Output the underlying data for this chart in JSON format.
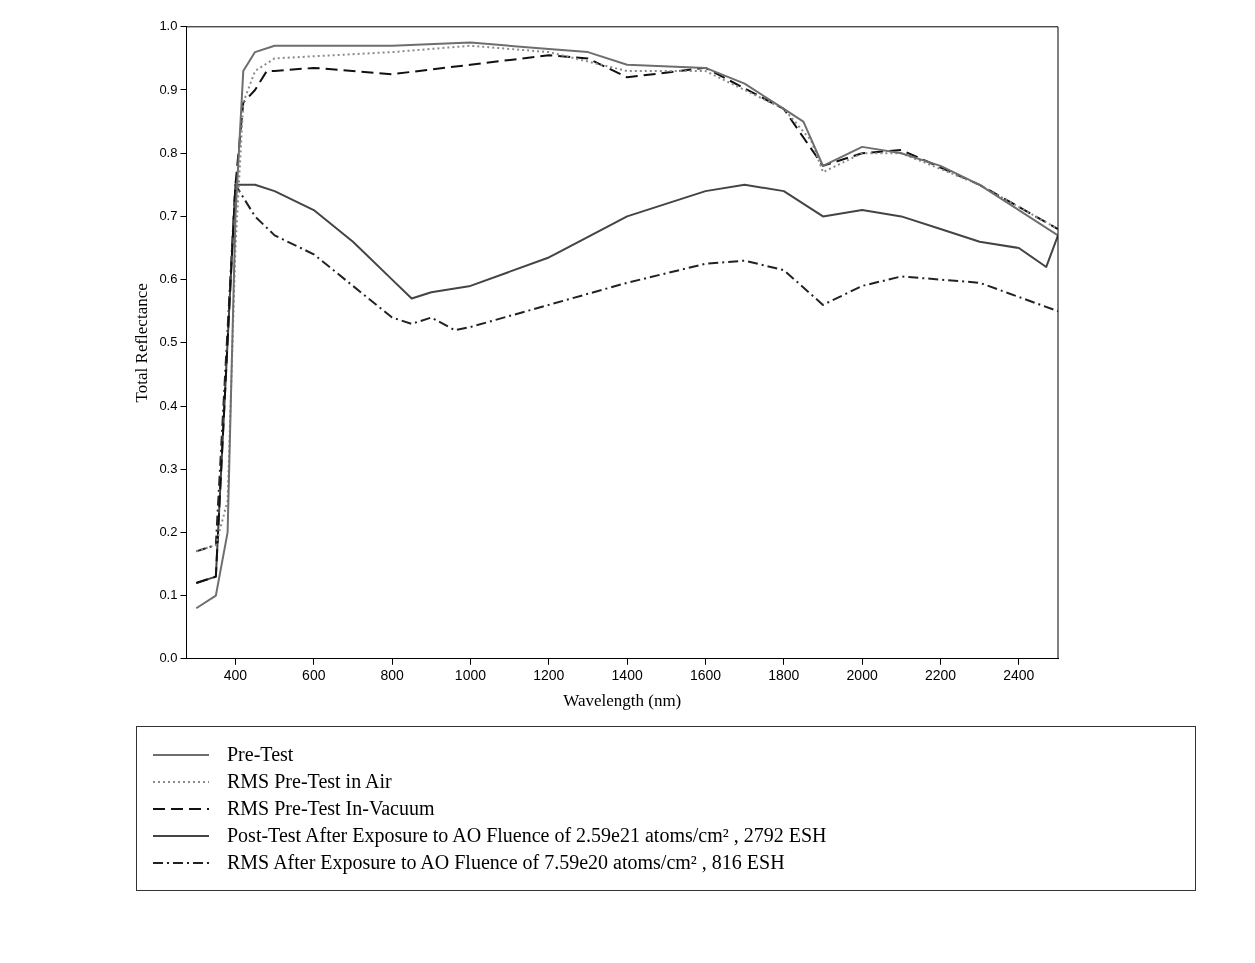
{
  "chart_data": {
    "type": "line",
    "xlabel": "Wavelength (nm)",
    "ylabel": "Total Reflectance",
    "xlim": [
      275,
      2500
    ],
    "xticks": [
      400,
      600,
      800,
      1000,
      1200,
      1400,
      1600,
      1800,
      2000,
      2200,
      2400
    ],
    "ylim": [
      0,
      1
    ],
    "yticks": [
      {
        "value": 0,
        "label": "0.0"
      },
      0.1,
      0.2,
      0.3,
      0.4,
      0.5,
      0.6,
      0.7,
      0.8,
      0.9,
      {
        "value": 1,
        "label": "1.0"
      }
    ],
    "legend": "bottom",
    "marker": "none",
    "grid": false,
    "series": [
      {
        "name": "Pre-Test",
        "color": "#6e6e6e",
        "line_style": "solid",
        "x": [
          300,
          350,
          380,
          400,
          420,
          450,
          500,
          800,
          1000,
          1200,
          1300,
          1400,
          1600,
          1700,
          1800,
          1850,
          1900,
          2000,
          2100,
          2200,
          2300,
          2400,
          2500
        ],
        "values": [
          0.08,
          0.1,
          0.2,
          0.7,
          0.93,
          0.96,
          0.97,
          0.97,
          0.975,
          0.965,
          0.96,
          0.94,
          0.935,
          0.91,
          0.87,
          0.85,
          0.78,
          0.81,
          0.8,
          0.78,
          0.75,
          0.71,
          0.67
        ]
      },
      {
        "name": "RMS Pre-Test in Air",
        "color": "#8a8a8a",
        "line_style": "dotted",
        "x": [
          300,
          350,
          380,
          400,
          420,
          450,
          500,
          800,
          1000,
          1200,
          1400,
          1600,
          1800,
          1870,
          1900,
          2000,
          2100,
          2300,
          2500
        ],
        "values": [
          0.17,
          0.18,
          0.25,
          0.65,
          0.88,
          0.93,
          0.95,
          0.96,
          0.97,
          0.96,
          0.93,
          0.93,
          0.87,
          0.82,
          0.77,
          0.8,
          0.8,
          0.75,
          0.68
        ]
      },
      {
        "name": "RMS Pre-Test In-Vacuum",
        "color": "#111111",
        "line_style": "dashed",
        "x": [
          300,
          350,
          400,
          420,
          450,
          480,
          500,
          600,
          800,
          1000,
          1200,
          1300,
          1400,
          1600,
          1800,
          1900,
          2000,
          2100,
          2300,
          2500
        ],
        "values": [
          0.12,
          0.13,
          0.75,
          0.88,
          0.9,
          0.93,
          0.93,
          0.935,
          0.925,
          0.94,
          0.955,
          0.95,
          0.92,
          0.935,
          0.87,
          0.78,
          0.8,
          0.805,
          0.75,
          0.68
        ]
      },
      {
        "name": "Post-Test After Exposure to AO Fluence of 2.59e21 atoms/cm² , 2792 ESH",
        "color": "#444444",
        "line_style": "solid",
        "x": [
          300,
          350,
          400,
          450,
          500,
          600,
          700,
          800,
          850,
          900,
          1000,
          1200,
          1400,
          1600,
          1700,
          1800,
          1900,
          2000,
          2100,
          2200,
          2300,
          2400,
          2470,
          2500
        ],
        "values": [
          0.12,
          0.13,
          0.75,
          0.75,
          0.74,
          0.71,
          0.66,
          0.6,
          0.57,
          0.58,
          0.59,
          0.635,
          0.7,
          0.74,
          0.75,
          0.74,
          0.7,
          0.71,
          0.7,
          0.68,
          0.66,
          0.65,
          0.62,
          0.67
        ]
      },
      {
        "name": "RMS After Exposure to AO Fluence of 7.59e20 atoms/cm² , 816 ESH",
        "color": "#222222",
        "line_style": "dashdot",
        "x": [
          300,
          350,
          400,
          450,
          500,
          600,
          700,
          800,
          850,
          900,
          960,
          1000,
          1200,
          1400,
          1600,
          1700,
          1800,
          1900,
          2000,
          2100,
          2300,
          2500
        ],
        "values": [
          0.17,
          0.18,
          0.75,
          0.7,
          0.67,
          0.64,
          0.59,
          0.54,
          0.53,
          0.54,
          0.52,
          0.525,
          0.56,
          0.595,
          0.625,
          0.63,
          0.615,
          0.56,
          0.59,
          0.605,
          0.595,
          0.55
        ]
      }
    ]
  }
}
